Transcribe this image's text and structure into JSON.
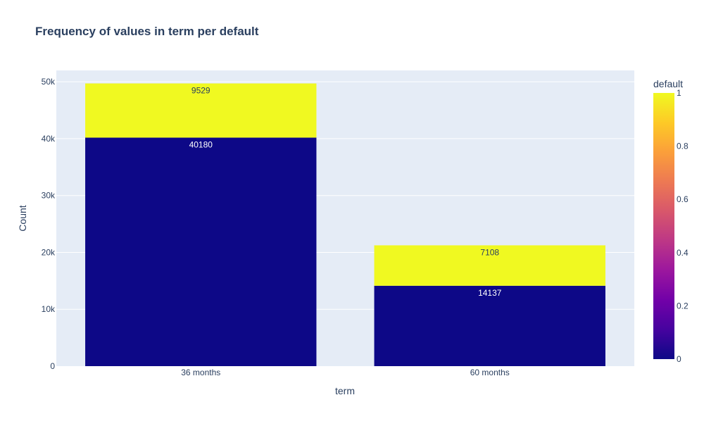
{
  "chart_data": {
    "type": "bar",
    "barmode": "stack",
    "title": "Frequency of values in term per default",
    "xlabel": "term",
    "ylabel": "Count",
    "categories": [
      "36 months",
      "60 months"
    ],
    "ylim": [
      0,
      52000
    ],
    "yticks": [
      0,
      10000,
      20000,
      30000,
      40000,
      50000
    ],
    "ytick_labels": [
      "0",
      "10k",
      "20k",
      "30k",
      "40k",
      "50k"
    ],
    "grid": true,
    "series": [
      {
        "default_value": 0,
        "values": [
          40180,
          14137
        ],
        "color": "#0d0887",
        "label_color": "#ffffff"
      },
      {
        "default_value": 1,
        "values": [
          9529,
          7108
        ],
        "color": "#f0f921",
        "label_color": "#2a3f5f"
      }
    ],
    "colorbar": {
      "title": "default",
      "range": [
        0,
        1
      ],
      "ticks": [
        0,
        0.2,
        0.4,
        0.6,
        0.8,
        1
      ],
      "tick_labels": [
        "0",
        "0.2",
        "0.4",
        "0.6",
        "0.8",
        "1"
      ],
      "colorscale": [
        "#0d0887",
        "#46039f",
        "#7201a8",
        "#9c179e",
        "#bd3786",
        "#d8576b",
        "#ed7953",
        "#fb9f3a",
        "#fdca26",
        "#f0f921"
      ]
    },
    "plot_bgcolor": "#e5ecf6"
  }
}
